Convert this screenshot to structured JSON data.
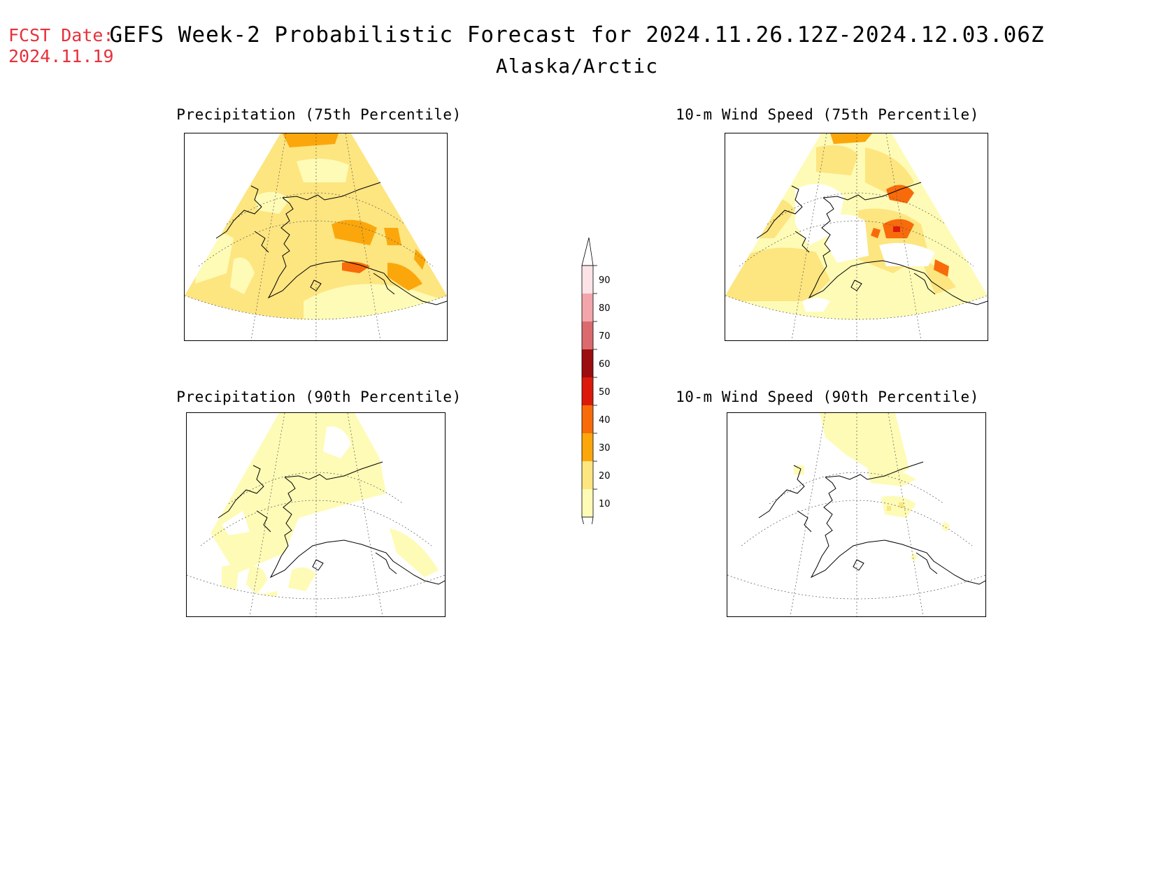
{
  "fcst": {
    "label": "FCST Date:",
    "date": "2024.11.19"
  },
  "title": {
    "line1": "GEFS Week-2 Probabilistic Forecast for 2024.11.26.12Z-2024.12.03.06Z",
    "line2": "Alaska/Arctic"
  },
  "panels": [
    {
      "title": "Precipitation (75th Percentile)"
    },
    {
      "title": "10-m Wind Speed (75th Percentile)"
    },
    {
      "title": "Precipitation (90th Percentile)"
    },
    {
      "title": "10-m Wind Speed (90th Percentile)"
    }
  ],
  "colorbar": {
    "levels": [
      "90",
      "80",
      "70",
      "60",
      "50",
      "40",
      "30",
      "20",
      "10"
    ],
    "colors": [
      "#fbe3e6",
      "#f2a6ab",
      "#db6a6e",
      "#9c0d10",
      "#dc1a0c",
      "#f86b0a",
      "#fba70c",
      "#fde580",
      "#fefbb6"
    ]
  },
  "colors": {
    "fcst_text": "#e8303a",
    "band_10_20": "#fefbb6",
    "band_20_30": "#fde580",
    "band_30_40": "#fba70c",
    "band_40_50": "#f86b0a",
    "band_50_60": "#dc1a0c"
  }
}
